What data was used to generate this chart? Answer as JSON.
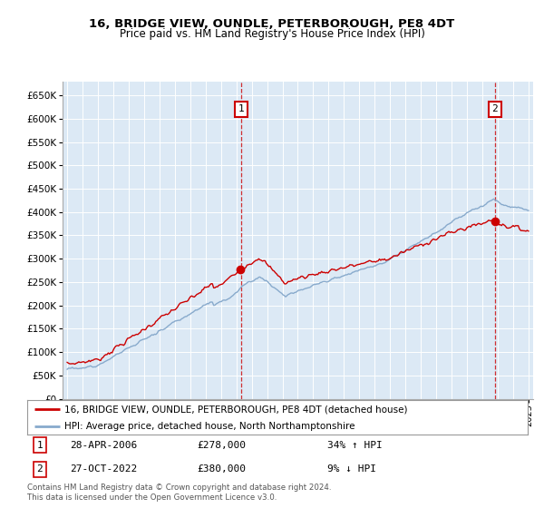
{
  "title": "16, BRIDGE VIEW, OUNDLE, PETERBOROUGH, PE8 4DT",
  "subtitle": "Price paid vs. HM Land Registry's House Price Index (HPI)",
  "bg_color": "#dce9f5",
  "red_line_color": "#cc0000",
  "blue_line_color": "#88aacc",
  "sale1_date": "28-APR-2006",
  "sale1_price": 278000,
  "sale1_hpi_pct": "34% ↑ HPI",
  "sale2_date": "27-OCT-2022",
  "sale2_price": 380000,
  "sale2_hpi_pct": "9% ↓ HPI",
  "legend_line1": "16, BRIDGE VIEW, OUNDLE, PETERBOROUGH, PE8 4DT (detached house)",
  "legend_line2": "HPI: Average price, detached house, North Northamptonshire",
  "footer": "Contains HM Land Registry data © Crown copyright and database right 2024.\nThis data is licensed under the Open Government Licence v3.0.",
  "ylim": [
    0,
    680000
  ],
  "yticks": [
    0,
    50000,
    100000,
    150000,
    200000,
    250000,
    300000,
    350000,
    400000,
    450000,
    500000,
    550000,
    600000,
    650000
  ],
  "sale1_x": 2006.32,
  "sale2_x": 2022.82,
  "xmin": 1994.7,
  "xmax": 2025.3
}
